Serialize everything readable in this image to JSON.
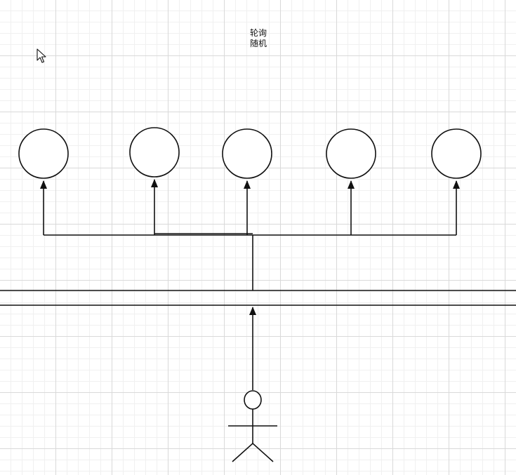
{
  "labels": {
    "line1": "轮询",
    "line2": "随机"
  },
  "colors": {
    "stroke": "#111111",
    "fill": "#ffffff"
  },
  "icons": {
    "cursor": "mouse-pointer-icon",
    "user": "stick-figure-actor-icon"
  }
}
